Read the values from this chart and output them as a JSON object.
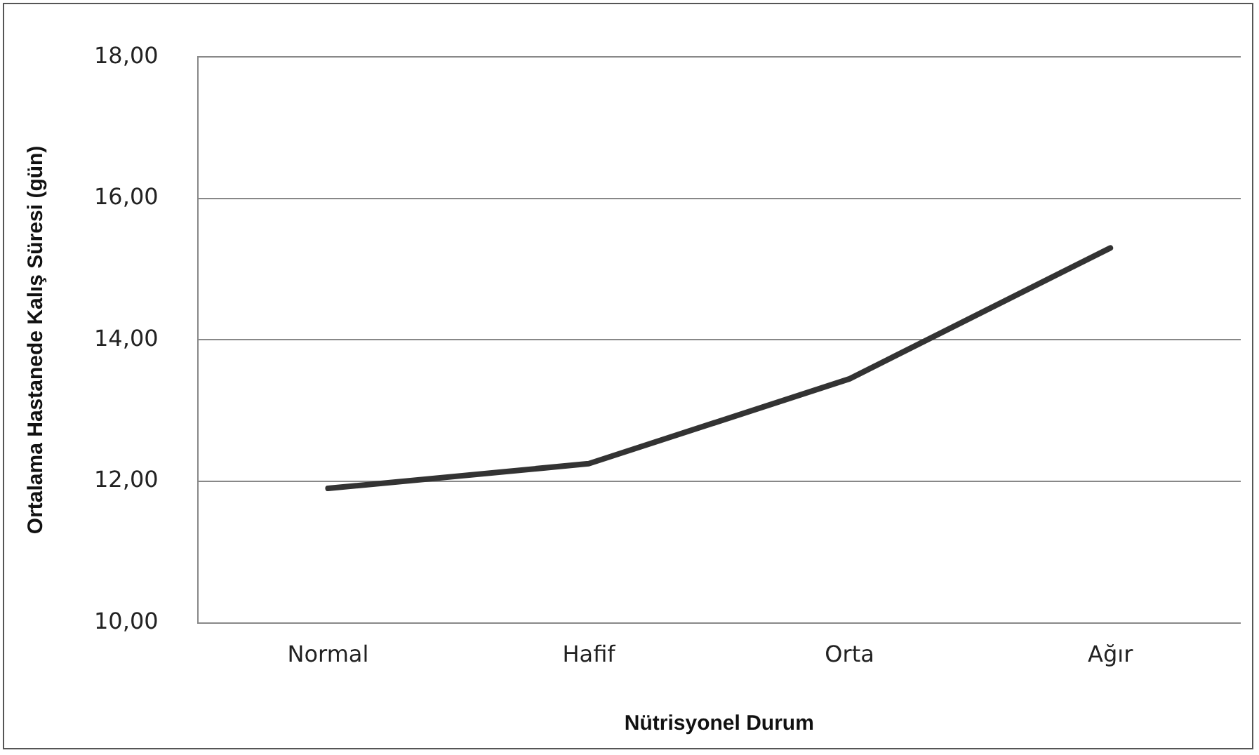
{
  "chart_data": {
    "type": "line",
    "xlabel": "Nütrisyonel Durum",
    "ylabel": "Ortalama Hastanede Kalış Süresi (gün)",
    "categories": [
      "Normal",
      "Hafif",
      "Orta",
      "Ağır"
    ],
    "series": [
      {
        "color": "#333333",
        "values": [
          11.9,
          12.25,
          13.45,
          15.3
        ]
      }
    ],
    "ylim": [
      10,
      18
    ],
    "yticks": [
      {
        "value": 10,
        "label": "10,00"
      },
      {
        "value": 12,
        "label": "12,00"
      },
      {
        "value": 14,
        "label": "14,00"
      },
      {
        "value": 16,
        "label": "16,00"
      },
      {
        "value": 18,
        "label": "18,00"
      }
    ],
    "grid": "y",
    "legend": false,
    "marker": "none",
    "line_style": "solid"
  }
}
